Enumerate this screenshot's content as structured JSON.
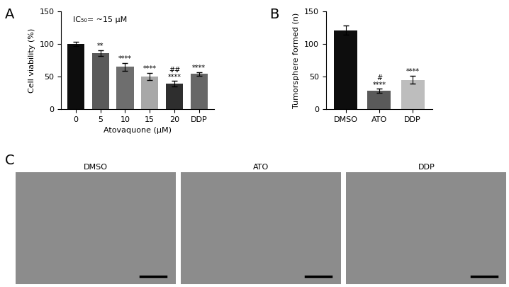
{
  "chart_data": [
    {
      "type": "bar",
      "panel": "A",
      "categories": [
        "0",
        "5",
        "10",
        "15",
        "20",
        "DDP"
      ],
      "values": [
        100,
        86,
        65,
        50,
        39,
        54
      ],
      "errors": [
        3,
        4,
        6,
        5,
        4,
        3
      ],
      "significance": [
        [],
        [
          "**"
        ],
        [
          "****"
        ],
        [
          "****"
        ],
        [
          "##",
          "****"
        ],
        [
          "****"
        ]
      ],
      "colors": [
        "#0d0d0d",
        "#5a5a5a",
        "#6e6e6e",
        "#a8a8a8",
        "#2e2e2e",
        "#676767"
      ],
      "x_label": "Atovaquone (μM)",
      "y_label": "Cell viability (%)",
      "annotations": [
        "IC₅₀= ~15 μM"
      ],
      "ylim": [
        0,
        150
      ],
      "yticks": [
        0,
        50,
        100,
        150
      ]
    },
    {
      "type": "bar",
      "panel": "B",
      "categories": [
        "DMSO",
        "ATO",
        "DDP"
      ],
      "values": [
        121,
        28,
        45
      ],
      "errors": [
        7,
        3,
        6
      ],
      "significance": [
        [],
        [
          "#",
          "****"
        ],
        [
          "****"
        ]
      ],
      "colors": [
        "#0d0d0d",
        "#5a5a5a",
        "#bdbdbd"
      ],
      "y_label": "Tumorsphere formed (n)",
      "ylim": [
        0,
        150
      ],
      "yticks": [
        0,
        50,
        100,
        150
      ]
    }
  ],
  "images": {
    "panel": "C",
    "titles": [
      "DMSO",
      "ATO",
      "DDP"
    ]
  }
}
